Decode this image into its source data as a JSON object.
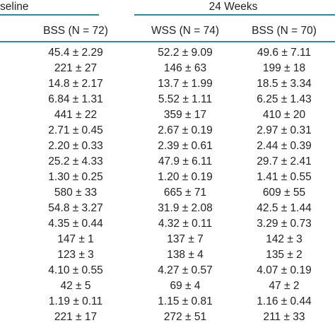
{
  "header": {
    "group_left": "seline",
    "group_right": "24 Weeks"
  },
  "table": {
    "columns": [
      "BSS (N = 72)",
      "WSS (N = 74)",
      "BSS (N = 70)"
    ],
    "rows": [
      [
        "45.4 ± 2.29",
        "52.2 ± 9.09",
        "49.6 ± 7.11"
      ],
      [
        "221 ± 27",
        "146 ± 63",
        "199 ± 18"
      ],
      [
        "14.8 ± 2.17",
        "13.7 ± 1.99",
        "18.5 ± 3.34"
      ],
      [
        "6.84 ± 1.31",
        "5.52 ± 1.11",
        "6.25 ± 1.43"
      ],
      [
        "441 ± 22",
        "359 ± 17",
        "410 ± 20"
      ],
      [
        "2.71 ± 0.45",
        "2.67 ± 0.19",
        "2.97 ± 0.31"
      ],
      [
        "2.20 ± 0.33",
        "2.39 ± 0.61",
        "2.44 ± 0.39"
      ],
      [
        "25.2 ± 4.33",
        "47.9 ± 6.11",
        "29.7 ± 2.41"
      ],
      [
        "1.30 ± 0.25",
        "1.20 ± 0.19",
        "1.41 ± 0.55"
      ],
      [
        "580 ± 33",
        "665 ± 71",
        "609 ± 55"
      ],
      [
        "54.8 ± 3.27",
        "31.9 ± 2.08",
        "42.5 ± 1.44"
      ],
      [
        "4.35 ± 0.44",
        "4.32 ± 0.11",
        "3.29 ± 0.73"
      ],
      [
        "147 ± 1",
        "137 ± 7",
        "142 ± 3"
      ],
      [
        "123 ± 3",
        "138 ± 4",
        "135 ± 2"
      ],
      [
        "4.10 ± 0.55",
        "4.27 ± 0.57",
        "4.07 ± 0.19"
      ],
      [
        "42 ± 5",
        "69 ± 4",
        "47 ± 2"
      ],
      [
        "1.19 ± 0.11",
        "1.15 ± 0.81",
        "1.16 ± 0.44"
      ],
      [
        "221 ± 17",
        "272 ± 51",
        "211 ± 33"
      ]
    ]
  }
}
